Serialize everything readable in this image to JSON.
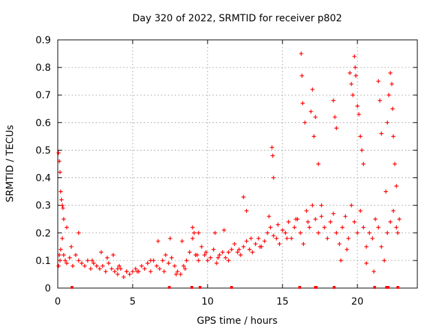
{
  "chart_data": {
    "type": "scatter",
    "title": "Day 320 of 2022, SRMTID for receiver p802",
    "xlabel": "GPS time / hours",
    "ylabel": "SRMTID / TECUs",
    "xlim": [
      0,
      24
    ],
    "ylim": [
      0,
      0.9
    ],
    "xticks": [
      0,
      5,
      10,
      15,
      20
    ],
    "xtick_labels": [
      "0",
      "5",
      "10",
      "15",
      "20"
    ],
    "yticks": [
      0,
      0.1,
      0.2,
      0.3,
      0.4,
      0.5,
      0.6,
      0.7,
      0.8,
      0.9
    ],
    "ytick_labels": [
      "0",
      "0.1",
      "0.2",
      "0.3",
      "0.4",
      "0.5",
      "0.6",
      "0.7",
      "0.8",
      "0.9"
    ],
    "grid": true,
    "marker": "+",
    "color": "#ff0000",
    "series": [
      {
        "name": "SRMTID",
        "x": [
          0.05,
          0.1,
          0.15,
          0.2,
          0.3,
          0.4,
          0.5,
          0.6,
          0.8,
          1.0,
          1.2,
          1.4,
          1.6,
          1.8,
          2.0,
          2.2,
          2.4,
          2.6,
          2.8,
          3.0,
          3.2,
          3.4,
          3.6,
          3.8,
          4.0,
          4.2,
          4.4,
          4.6,
          4.8,
          5.0,
          5.2,
          5.4,
          5.6,
          5.8,
          6.0,
          6.2,
          6.4,
          6.6,
          6.8,
          7.0,
          7.2,
          7.4,
          7.6,
          7.8,
          8.0,
          8.2,
          8.4,
          8.6,
          8.8,
          9.0,
          9.2,
          9.4,
          9.6,
          9.8,
          10.0,
          10.2,
          10.4,
          10.6,
          10.8,
          11.0,
          11.2,
          11.4,
          11.6,
          11.8,
          12.0,
          12.2,
          12.4,
          12.6,
          12.8,
          13.0,
          13.2,
          13.4,
          13.6,
          13.8,
          14.0,
          14.2,
          14.4,
          14.6,
          14.8,
          15.0,
          15.2,
          15.4,
          15.6,
          15.8,
          16.0,
          16.2,
          16.4,
          16.6,
          16.8,
          17.0,
          17.2,
          17.4,
          17.6,
          17.8,
          18.0,
          18.2,
          18.4,
          18.6,
          18.8,
          19.0,
          19.2,
          19.4,
          19.6,
          19.8,
          20.0,
          20.2,
          20.4,
          20.6,
          20.8,
          21.0,
          21.2,
          21.4,
          21.6,
          21.8,
          22.0,
          22.2,
          22.4,
          22.6,
          22.8,
          0.05,
          0.1,
          0.15,
          0.2,
          0.25,
          0.3,
          0.35,
          0.4,
          0.6,
          1.4,
          2.9,
          3.7,
          4.1,
          6.7,
          7.5,
          8.3,
          9.0,
          9.1,
          9.4,
          10.5,
          11.1,
          12.4,
          12.6,
          14.3,
          14.35,
          14.4,
          16.25,
          16.3,
          16.35,
          16.5,
          16.9,
          17.0,
          17.1,
          17.2,
          17.4,
          18.4,
          18.5,
          18.6,
          19.5,
          19.6,
          19.7,
          19.8,
          19.85,
          19.9,
          20.0,
          20.1,
          20.2,
          20.3,
          20.4,
          21.4,
          21.5,
          21.6,
          22.0,
          22.1,
          22.2,
          22.3,
          22.35,
          22.4,
          22.5,
          22.6,
          0.9,
          2.3,
          3.3,
          4.0,
          4.6,
          5.3,
          6.2,
          7.1,
          7.9,
          8.5,
          9.3,
          9.9,
          10.7,
          11.4,
          12.1,
          12.9,
          13.5,
          14.1,
          14.7,
          15.3,
          15.9,
          16.7,
          17.6,
          18.9,
          19.3,
          20.6,
          21.1,
          21.9,
          22.7
        ],
        "y": [
          0.08,
          0.12,
          0.1,
          0.14,
          0.18,
          0.12,
          0.1,
          0.09,
          0.11,
          0.08,
          0.12,
          0.1,
          0.09,
          0.08,
          0.1,
          0.07,
          0.09,
          0.08,
          0.07,
          0.08,
          0.06,
          0.09,
          0.07,
          0.06,
          0.05,
          0.07,
          0.04,
          0.06,
          0.05,
          0.06,
          0.07,
          0.06,
          0.08,
          0.07,
          0.09,
          0.06,
          0.1,
          0.08,
          0.07,
          0.1,
          0.12,
          0.09,
          0.11,
          0.08,
          0.06,
          0.05,
          0.08,
          0.1,
          0.13,
          0.18,
          0.12,
          0.1,
          0.15,
          0.12,
          0.1,
          0.11,
          0.14,
          0.09,
          0.12,
          0.13,
          0.11,
          0.1,
          0.14,
          0.16,
          0.13,
          0.12,
          0.15,
          0.17,
          0.14,
          0.13,
          0.16,
          0.18,
          0.15,
          0.17,
          0.2,
          0.22,
          0.19,
          0.18,
          0.16,
          0.21,
          0.2,
          0.24,
          0.18,
          0.22,
          0.25,
          0.2,
          0.16,
          0.28,
          0.22,
          0.3,
          0.25,
          0.2,
          0.26,
          0.22,
          0.18,
          0.24,
          0.27,
          0.2,
          0.16,
          0.22,
          0.26,
          0.18,
          0.3,
          0.24,
          0.2,
          0.28,
          0.22,
          0.15,
          0.2,
          0.18,
          0.25,
          0.22,
          0.15,
          0.1,
          0.2,
          0.24,
          0.28,
          0.22,
          0.25,
          0.49,
          0.46,
          0.42,
          0.35,
          0.32,
          0.3,
          0.29,
          0.25,
          0.22,
          0.2,
          0.13,
          0.12,
          0.08,
          0.17,
          0.18,
          0.17,
          0.22,
          0.2,
          0.2,
          0.2,
          0.21,
          0.33,
          0.28,
          0.51,
          0.48,
          0.4,
          0.85,
          0.77,
          0.67,
          0.6,
          0.64,
          0.72,
          0.55,
          0.62,
          0.45,
          0.68,
          0.62,
          0.58,
          0.78,
          0.74,
          0.7,
          0.84,
          0.8,
          0.77,
          0.66,
          0.63,
          0.55,
          0.5,
          0.45,
          0.75,
          0.68,
          0.56,
          0.6,
          0.7,
          0.78,
          0.74,
          0.65,
          0.55,
          0.45,
          0.37,
          0.15,
          0.1,
          0.11,
          0.07,
          0.06,
          0.06,
          0.1,
          0.06,
          0.05,
          0.07,
          0.12,
          0.13,
          0.11,
          0.13,
          0.14,
          0.18,
          0.15,
          0.26,
          0.23,
          0.18,
          0.25,
          0.24,
          0.3,
          0.1,
          0.14,
          0.09,
          0.06,
          0.35,
          0.2
        ]
      }
    ],
    "baseline_markers_x": [
      0.95,
      7.45,
      8.95,
      9.5,
      11.6,
      16.15,
      17.2,
      17.25,
      18.45,
      21.15,
      21.95,
      22.05,
      22.7
    ]
  }
}
